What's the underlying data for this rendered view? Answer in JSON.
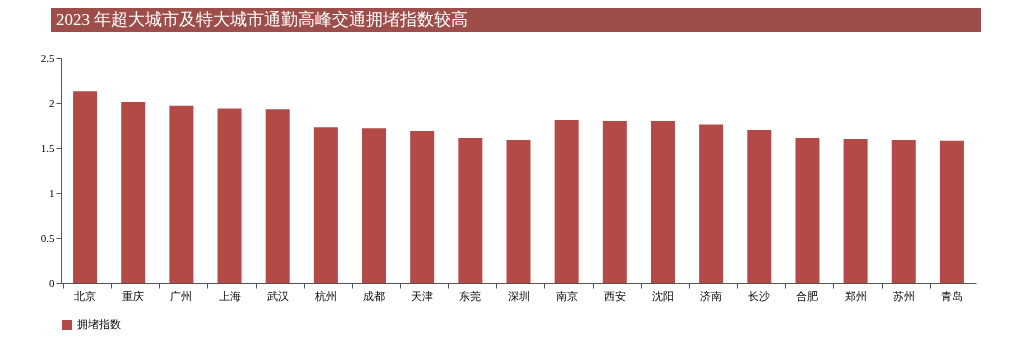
{
  "chart_data": {
    "type": "bar",
    "title": "2023 年超大城市及特大城市通勤高峰交通拥堵指数较高",
    "categories": [
      "北京",
      "重庆",
      "广州",
      "上海",
      "武汉",
      "杭州",
      "成都",
      "天津",
      "东莞",
      "深圳",
      "南京",
      "西安",
      "沈阳",
      "济南",
      "长沙",
      "合肥",
      "郑州",
      "苏州",
      "青岛"
    ],
    "series": [
      {
        "name": "拥堵指数",
        "color": "#b34a47",
        "values": [
          2.13,
          2.01,
          1.97,
          1.94,
          1.93,
          1.73,
          1.72,
          1.69,
          1.61,
          1.59,
          1.81,
          1.8,
          1.8,
          1.76,
          1.7,
          1.61,
          1.6,
          1.59,
          1.58
        ]
      }
    ],
    "ylim": [
      0,
      2.5
    ],
    "yticks": [
      0,
      0.5,
      1,
      1.5,
      2,
      2.5
    ],
    "grid": false,
    "legend": "bottom"
  }
}
